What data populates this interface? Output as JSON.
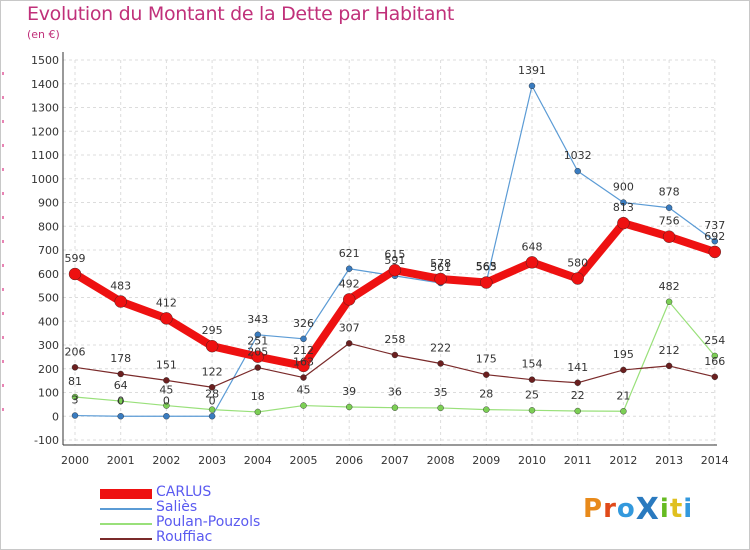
{
  "title": "Evolution du Montant de la Dette par Habitant",
  "unit_label": "(en €)",
  "logo_text": "ProXiti",
  "chart_data": {
    "type": "line",
    "title": "Evolution du Montant de la Dette par Habitant",
    "ylabel": "(en €)",
    "xlabel": "",
    "ylim": [
      -100,
      1500
    ],
    "yticks": [
      -100,
      0,
      100,
      200,
      300,
      400,
      500,
      600,
      700,
      800,
      900,
      1000,
      1100,
      1200,
      1300,
      1400,
      1500
    ],
    "categories": [
      "2000",
      "2001",
      "2002",
      "2003",
      "2004",
      "2005",
      "2006",
      "2007",
      "2008",
      "2009",
      "2010",
      "2011",
      "2012",
      "2013",
      "2014"
    ],
    "grid": true,
    "legend_position": "bottom-left",
    "series": [
      {
        "name": "Saliès",
        "color": "#5b9bd5",
        "point_color": "#3a7cc0",
        "values": [
          3,
          0,
          0,
          0,
          343,
          326,
          621,
          591,
          561,
          565,
          1391,
          1032,
          900,
          878,
          737
        ]
      },
      {
        "name": "Poulan-Pouzols",
        "color": "#99e07a",
        "point_color": "#7ccf55",
        "values": [
          81,
          64,
          45,
          28,
          18,
          45,
          39,
          36,
          35,
          28,
          25,
          22,
          21,
          482,
          254
        ]
      },
      {
        "name": "Rouffiac",
        "color": "#7a2a2a",
        "point_color": "#6b1f1f",
        "values": [
          206,
          178,
          151,
          122,
          205,
          163,
          307,
          258,
          222,
          175,
          154,
          141,
          195,
          212,
          166
        ]
      },
      {
        "name": "CARLUS",
        "color": "#ee1111",
        "point_color": "#ee1111",
        "values": [
          599,
          483,
          412,
          295,
          251,
          212,
          492,
          615,
          578,
          563,
          648,
          580,
          813,
          756,
          692
        ]
      }
    ],
    "data_labels": {
      "Saliès": [
        "3",
        "0",
        "0",
        "0",
        "343",
        "326",
        "621",
        "591",
        "561",
        "565",
        "1391",
        "1032",
        "900",
        "878",
        "737"
      ],
      "Poulan-Pouzols": [
        "81",
        "64",
        "45",
        "28",
        "18",
        "45",
        "39",
        "36",
        "35",
        "28",
        "25",
        "22",
        "21",
        "482",
        "254"
      ],
      "Rouffiac": [
        "206",
        "178",
        "151",
        "122",
        "205",
        "163",
        "307",
        "258",
        "222",
        "175",
        "154",
        "141",
        "195",
        "212",
        "166"
      ],
      "CARLUS": [
        "599",
        "483",
        "412",
        "295",
        "251",
        "212",
        "492",
        "615",
        "578",
        "563",
        "648",
        "580",
        "813",
        "756",
        "692"
      ]
    }
  },
  "legend": [
    {
      "name": "CARLUS",
      "color": "#ee1111",
      "thickness": 10
    },
    {
      "name": "Saliès",
      "color": "#5b9bd5",
      "thickness": 2
    },
    {
      "name": "Poulan-Pouzols",
      "color": "#99e07a",
      "thickness": 2
    },
    {
      "name": "Rouffiac",
      "color": "#7a2a2a",
      "thickness": 2
    }
  ],
  "logo_colors": [
    "#e88a1a",
    "#e04a1a",
    "#3399dd",
    "#2a7abf",
    "#66bb22",
    "#e0c020",
    "#3399dd"
  ]
}
